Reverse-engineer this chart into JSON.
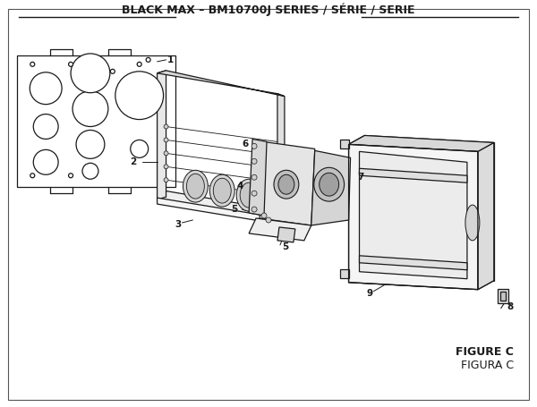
{
  "title": "BLACK MAX – BM10700J SERIES / SÉRIE / SERIE",
  "title_fontsize": 9.0,
  "title_fontweight": "bold",
  "figure_c_text": "FIGURE C",
  "figura_c_text": "FIGURA C",
  "bg_color": "#ffffff",
  "line_color": "#1a1a1a",
  "fill_light": "#f0f0f0",
  "fill_mid": "#e0e0e0",
  "fill_dark": "#cccccc"
}
